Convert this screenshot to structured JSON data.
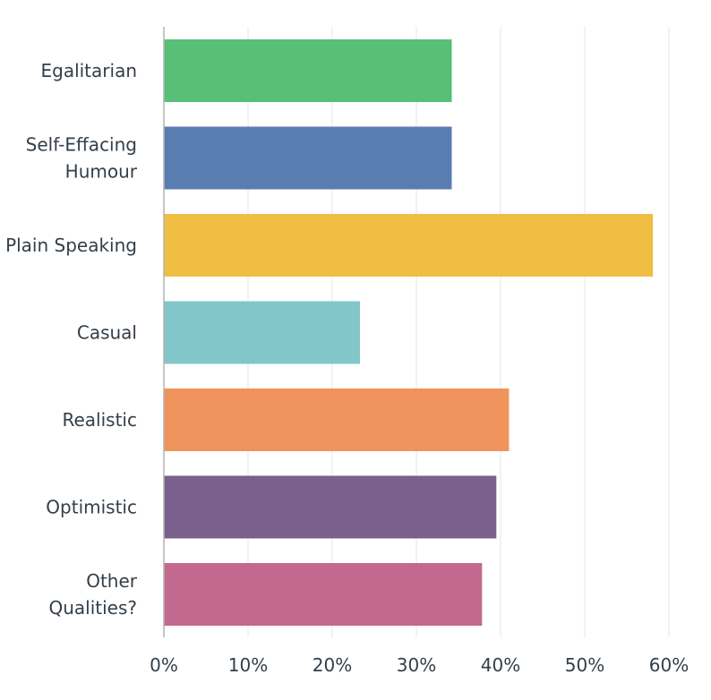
{
  "chart_data": {
    "type": "bar",
    "orientation": "horizontal",
    "categories": [
      [
        "Egalitarian"
      ],
      [
        "Self-Effacing",
        "Humour"
      ],
      [
        "Plain Speaking"
      ],
      [
        "Casual"
      ],
      [
        "Realistic"
      ],
      [
        "Optimistic"
      ],
      [
        "Other",
        "Qualities?"
      ]
    ],
    "values": [
      34.2,
      34.2,
      58.1,
      23.3,
      41.0,
      39.5,
      37.8
    ],
    "colors": [
      "#57bf76",
      "#5a7db1",
      "#efbe42",
      "#83c6ca",
      "#f0935c",
      "#7a608c",
      "#c3698f"
    ],
    "xlim": [
      0,
      65
    ],
    "xticks": [
      0,
      10,
      20,
      30,
      40,
      50,
      60
    ],
    "tick_format": "{v}%",
    "grid": true,
    "title": "",
    "xlabel": "",
    "ylabel": ""
  }
}
